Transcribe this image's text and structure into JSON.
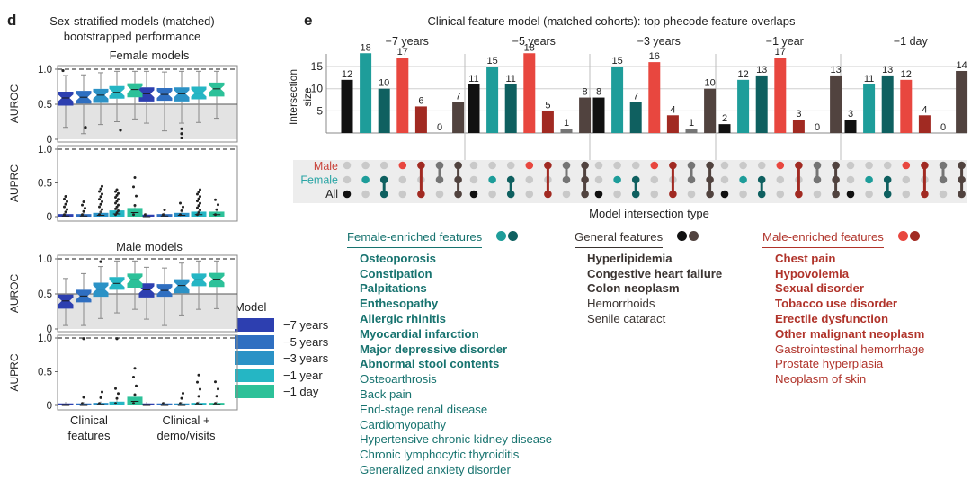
{
  "panel_d": {
    "label": "d",
    "title_line1": "Sex-stratified models (matched)",
    "title_line2": "bootstrapped performance",
    "female_title": "Female models",
    "male_title": "Male models",
    "y_label_auroc": "AUROC",
    "y_label_auprc": "AUPRC",
    "auroc_ticks": [
      "1.0",
      "0.5",
      "0"
    ],
    "auprc_ticks": [
      "1.0",
      "0.5",
      "0"
    ],
    "x_group1_line1": "Clinical",
    "x_group1_line2": "features",
    "x_group2_line1": "Clinical +",
    "x_group2_line2": "demo/visits",
    "legend_title": "Model",
    "legend": [
      "−7 years",
      "−5 years",
      "−3 years",
      "−1 year",
      "−1 day"
    ],
    "model_colors": [
      "#2d3fb0",
      "#2f6fc1",
      "#2b92c6",
      "#25b6c4",
      "#2dc199"
    ]
  },
  "panel_e": {
    "label": "e",
    "title": "Clinical feature model (matched cohorts): top phecode feature overlaps",
    "x_label": "Model intersection type",
    "y_label_line1": "Intersection",
    "y_label_line2": "size",
    "y_ticks": [
      "15",
      "10",
      "5"
    ],
    "row_labels": [
      "Male",
      "Female",
      "All"
    ],
    "row_label_colors": [
      "#c9433a",
      "#2aa5a5",
      "#222222"
    ],
    "bar_colors": [
      "#111111",
      "#1e9d9a",
      "#0f6060",
      "#e8473f",
      "#a12a22",
      "#757575",
      "#51433f"
    ]
  },
  "chart_data": [
    {
      "type": "box",
      "title": "Female models",
      "metric": "AUROC",
      "ylim": [
        0,
        1.0
      ],
      "reference_line": 1.0,
      "chance_level": 0.5,
      "categories": [
        "Clinical features",
        "Clinical + demo/visits"
      ],
      "series": [
        {
          "name": "−7 years",
          "medians": [
            0.59,
            0.65
          ]
        },
        {
          "name": "−5 years",
          "medians": [
            0.6,
            0.64
          ]
        },
        {
          "name": "−3 years",
          "medians": [
            0.63,
            0.65
          ]
        },
        {
          "name": "−1 year",
          "medians": [
            0.67,
            0.66
          ]
        },
        {
          "name": "−1 day",
          "medians": [
            0.71,
            0.72
          ]
        }
      ]
    },
    {
      "type": "box",
      "title": "Female models",
      "metric": "AUPRC",
      "ylim": [
        0,
        1.0
      ],
      "categories": [
        "Clinical features",
        "Clinical + demo/visits"
      ],
      "series": [
        {
          "name": "−7 years",
          "medians": [
            0.01,
            0.0
          ]
        },
        {
          "name": "−5 years",
          "medians": [
            0.01,
            0.01
          ]
        },
        {
          "name": "−3 years",
          "medians": [
            0.02,
            0.02
          ]
        },
        {
          "name": "−1 year",
          "medians": [
            0.04,
            0.03
          ]
        },
        {
          "name": "−1 day",
          "medians": [
            0.06,
            0.03
          ]
        }
      ]
    },
    {
      "type": "box",
      "title": "Male models",
      "metric": "AUROC",
      "ylim": [
        0,
        1.0
      ],
      "reference_line": 1.0,
      "chance_level": 0.5,
      "categories": [
        "Clinical features",
        "Clinical + demo/visits"
      ],
      "series": [
        {
          "name": "−7 years",
          "medians": [
            0.4,
            0.56
          ]
        },
        {
          "name": "−5 years",
          "medians": [
            0.47,
            0.55
          ]
        },
        {
          "name": "−3 years",
          "medians": [
            0.57,
            0.62
          ]
        },
        {
          "name": "−1 year",
          "medians": [
            0.65,
            0.7
          ]
        },
        {
          "name": "−1 day",
          "medians": [
            0.7,
            0.71
          ]
        }
      ]
    },
    {
      "type": "box",
      "title": "Male models",
      "metric": "AUPRC",
      "ylim": [
        0,
        1.0
      ],
      "categories": [
        "Clinical features",
        "Clinical + demo/visits"
      ],
      "series": [
        {
          "name": "−7 years",
          "medians": [
            0.0,
            0.0
          ]
        },
        {
          "name": "−5 years",
          "medians": [
            0.0,
            0.0
          ]
        },
        {
          "name": "−3 years",
          "medians": [
            0.01,
            0.0
          ]
        },
        {
          "name": "−1 year",
          "medians": [
            0.02,
            0.01
          ]
        },
        {
          "name": "−1 day",
          "medians": [
            0.06,
            0.01
          ]
        }
      ]
    },
    {
      "type": "bar",
      "title": "Clinical feature model (matched cohorts): top phecode feature overlaps",
      "xlabel": "Model intersection type",
      "ylabel": "Intersection size",
      "ylim": [
        0,
        19
      ],
      "intersection_types": [
        "All only",
        "Female only",
        "Female + All",
        "Male only",
        "Male + All",
        "Male + Female",
        "Male + Female + All"
      ],
      "series": [
        {
          "name": "−7 years",
          "values": [
            12,
            18,
            10,
            17,
            6,
            0,
            7
          ]
        },
        {
          "name": "−5 years",
          "values": [
            11,
            15,
            11,
            18,
            5,
            1,
            8
          ]
        },
        {
          "name": "−3 years",
          "values": [
            8,
            15,
            7,
            16,
            4,
            1,
            10
          ]
        },
        {
          "name": "−1 year",
          "values": [
            2,
            12,
            13,
            17,
            3,
            0,
            13
          ]
        },
        {
          "name": "−1 day",
          "values": [
            3,
            11,
            13,
            12,
            4,
            0,
            14
          ]
        }
      ]
    }
  ],
  "lists": {
    "female": {
      "title": "Female-enriched features",
      "dot_colors": [
        "#1e9d9a",
        "#0f6060"
      ],
      "text_color": "#17736f",
      "bold_items": [
        "Osteoporosis",
        "Constipation",
        "Palpitations",
        "Enthesopathy",
        "Allergic rhinitis",
        "Myocardial infarction",
        "Major depressive disorder",
        "Abnormal stool contents"
      ],
      "items": [
        "Osteoarthrosis",
        "Back pain",
        "End-stage renal disease",
        "Cardiomyopathy",
        "Hypertensive chronic kidney disease",
        "Chronic lymphocytic thyroiditis",
        "Generalized anxiety disorder"
      ]
    },
    "general": {
      "title": "General features",
      "dot_colors": [
        "#111111",
        "#51433f"
      ],
      "text_color": "#3a3330",
      "bold_items": [
        "Hyperlipidemia",
        "Congestive heart failure",
        "Colon neoplasm"
      ],
      "items": [
        "Hemorrhoids",
        "Senile cataract"
      ]
    },
    "male": {
      "title": "Male-enriched features",
      "dot_colors": [
        "#e8473f",
        "#a12a22"
      ],
      "text_color": "#b0332a",
      "bold_items": [
        "Chest pain",
        "Hypovolemia",
        "Sexual disorder",
        "Tobacco use disorder",
        "Erectile dysfunction",
        "Other malignant neoplasm"
      ],
      "items": [
        "Gastrointestinal hemorrhage",
        "Prostate hyperplasia",
        "Neoplasm of skin"
      ]
    }
  }
}
